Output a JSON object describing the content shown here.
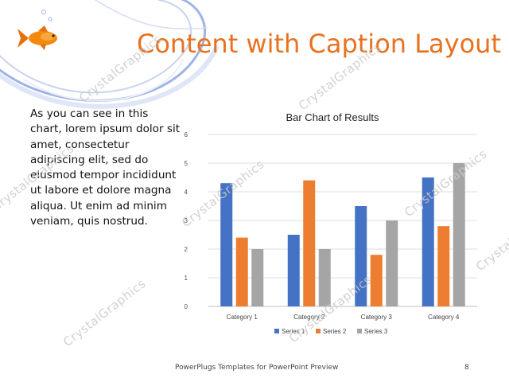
{
  "slide": {
    "title": "Content with Caption Layout",
    "body": "As you can see in this chart, lorem ipsum dolor sit amet, consectetur adipiscing elit, sed do eiusmod tempor incididunt ut labore et dolore magna aliqua. Ut enim ad minim veniam, quis nostrud.",
    "footer": "PowerPlugs Templates for PowerPoint Preview",
    "page_number": "8",
    "watermark": "CrystalGraphics",
    "colors": {
      "title": "#E8711F",
      "series": [
        "#4472C4",
        "#ED7D31",
        "#A5A5A5"
      ]
    },
    "decorations": [
      "goldfish-image",
      "swirl-lines"
    ]
  },
  "chart_data": {
    "type": "bar",
    "title": "Bar Chart of Results",
    "categories": [
      "Category 1",
      "Category 2",
      "Category 3",
      "Category 4"
    ],
    "series": [
      {
        "name": "Series 1",
        "values": [
          4.3,
          2.5,
          3.5,
          4.5
        ]
      },
      {
        "name": "Series 2",
        "values": [
          2.4,
          4.4,
          1.8,
          2.8
        ]
      },
      {
        "name": "Series 3",
        "values": [
          2.0,
          2.0,
          3.0,
          5.0
        ]
      }
    ],
    "ylim": [
      0,
      6
    ],
    "yticks": [
      "0",
      "1",
      "2",
      "3",
      "4",
      "5",
      "6"
    ],
    "grid": true,
    "legend": "bottom"
  }
}
